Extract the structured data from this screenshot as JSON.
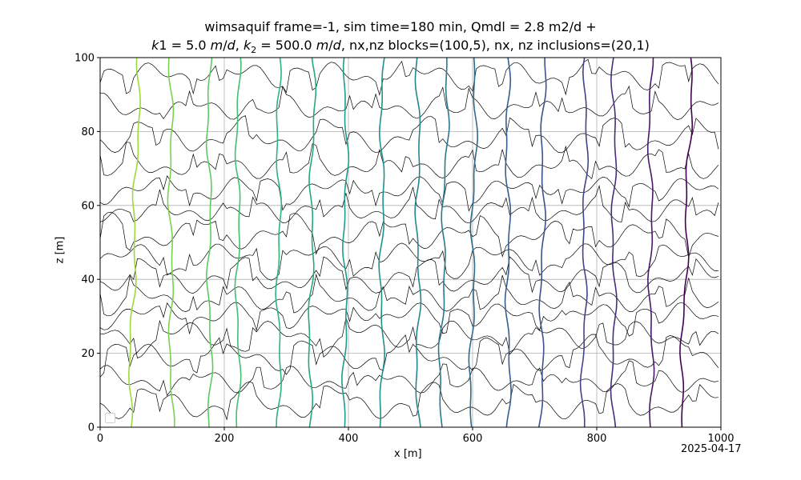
{
  "title": {
    "line1": "wimsaquif frame=-1, sim time=180 min, Qmdl = 2.8 m2/d +",
    "line2": "k1 = 5.0 m/d, k2 = 500.0 m/d, nx,nz blocks=(100,5), nx, nz inclusions=(20,1)"
  },
  "date_stamp": "2025-04-17",
  "chart_data": {
    "type": "line",
    "title": "wimsaquif frame=-1, sim time=180 min, Qmdl = 2.8 m2/d + k1 = 5.0 m/d, k2 = 500.0 m/d, nx,nz blocks=(100,5), nx, nz inclusions=(20,1)",
    "xlabel": "x [m]",
    "ylabel": "z [m]",
    "xlim": [
      0,
      1000
    ],
    "ylim": [
      0,
      100
    ],
    "xticks": [
      0,
      200,
      400,
      600,
      800,
      1000
    ],
    "yticks": [
      0,
      20,
      40,
      60,
      80,
      100
    ],
    "grid": true,
    "legend": "bottom-left (empty)",
    "head_contours": {
      "x_at_bottom": [
        47,
        115,
        177,
        222,
        288,
        337,
        394,
        453,
        512,
        547,
        597,
        658,
        710,
        778,
        827,
        888,
        935
      ],
      "x_at_top": [
        63,
        113,
        175,
        222,
        287,
        344,
        396,
        455,
        512,
        560,
        605,
        656,
        715,
        783,
        828,
        886,
        953
      ],
      "colors": [
        "#9bd93c",
        "#7ad151",
        "#5ec962",
        "#44bf70",
        "#2fb47c",
        "#22a884",
        "#1e9c89",
        "#21918c",
        "#25858e",
        "#2a788e",
        "#2f6c8e",
        "#355f8d",
        "#3b528b",
        "#414487",
        "#472d7b",
        "#48186a",
        "#440154"
      ]
    },
    "streamlines": {
      "z_start": [
        95,
        87,
        78,
        71,
        64,
        59,
        52,
        46,
        40,
        35,
        30,
        25,
        19,
        13,
        6
      ],
      "color": "#000000"
    }
  }
}
